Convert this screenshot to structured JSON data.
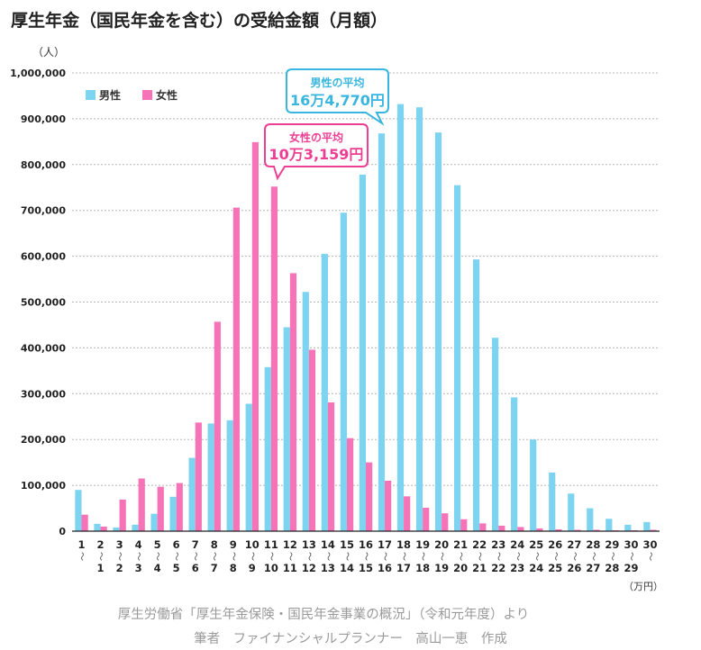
{
  "title": "厚生年金（国民年金を含む）の受給金額（月額）",
  "chart_data": {
    "type": "bar",
    "yunit": "（人）",
    "xunit": "（万円）",
    "ylim": [
      0,
      1000000
    ],
    "yticks": [
      "0",
      "100,000",
      "200,000",
      "300,000",
      "400,000",
      "500,000",
      "600,000",
      "700,000",
      "800,000",
      "900,000",
      "1,000,000"
    ],
    "grid": true,
    "legend_position": "top-left",
    "categories_top": [
      "1",
      "2",
      "3",
      "4",
      "5",
      "6",
      "7",
      "8",
      "9",
      "10",
      "11",
      "12",
      "13",
      "14",
      "15",
      "16",
      "17",
      "18",
      "19",
      "20",
      "21",
      "22",
      "23",
      "24",
      "25",
      "26",
      "27",
      "28",
      "29",
      "30",
      "30"
    ],
    "categories_bottom": [
      "",
      "1",
      "2",
      "3",
      "4",
      "5",
      "6",
      "7",
      "8",
      "9",
      "10",
      "11",
      "12",
      "13",
      "14",
      "15",
      "16",
      "17",
      "18",
      "19",
      "20",
      "21",
      "22",
      "23",
      "24",
      "25",
      "26",
      "27",
      "28",
      "29",
      ""
    ],
    "range_symbol": "〜",
    "series": [
      {
        "name": "男性",
        "color": "#7dd4f0",
        "values": [
          90000,
          16000,
          8000,
          14000,
          38000,
          75000,
          160000,
          235000,
          242000,
          278000,
          358000,
          445000,
          522000,
          605000,
          695000,
          778000,
          868000,
          932000,
          925000,
          870000,
          755000,
          593000,
          422000,
          292000,
          200000,
          128000,
          82000,
          50000,
          27000,
          14000,
          20000
        ]
      },
      {
        "name": "女性",
        "color": "#f673b7",
        "values": [
          36000,
          10000,
          69000,
          115000,
          97000,
          105000,
          237000,
          457000,
          706000,
          849000,
          752000,
          563000,
          396000,
          281000,
          203000,
          150000,
          110000,
          76000,
          51000,
          39000,
          26000,
          17000,
          12000,
          9000,
          6000,
          4000,
          3000,
          3000,
          2000,
          2000,
          3000
        ]
      }
    ],
    "annotations": [
      {
        "label": "男性の平均",
        "value": "16万4,770円",
        "color": "#38b6e0"
      },
      {
        "label": "女性の平均",
        "value": "10万3,159円",
        "color": "#ec3f93"
      }
    ]
  },
  "source": {
    "line1": "厚生労働省「厚生年金保険・国民年金事業の概況」（令和元年度）より",
    "line2": "筆者　ファイナンシャルプランナー　高山一恵　作成"
  }
}
